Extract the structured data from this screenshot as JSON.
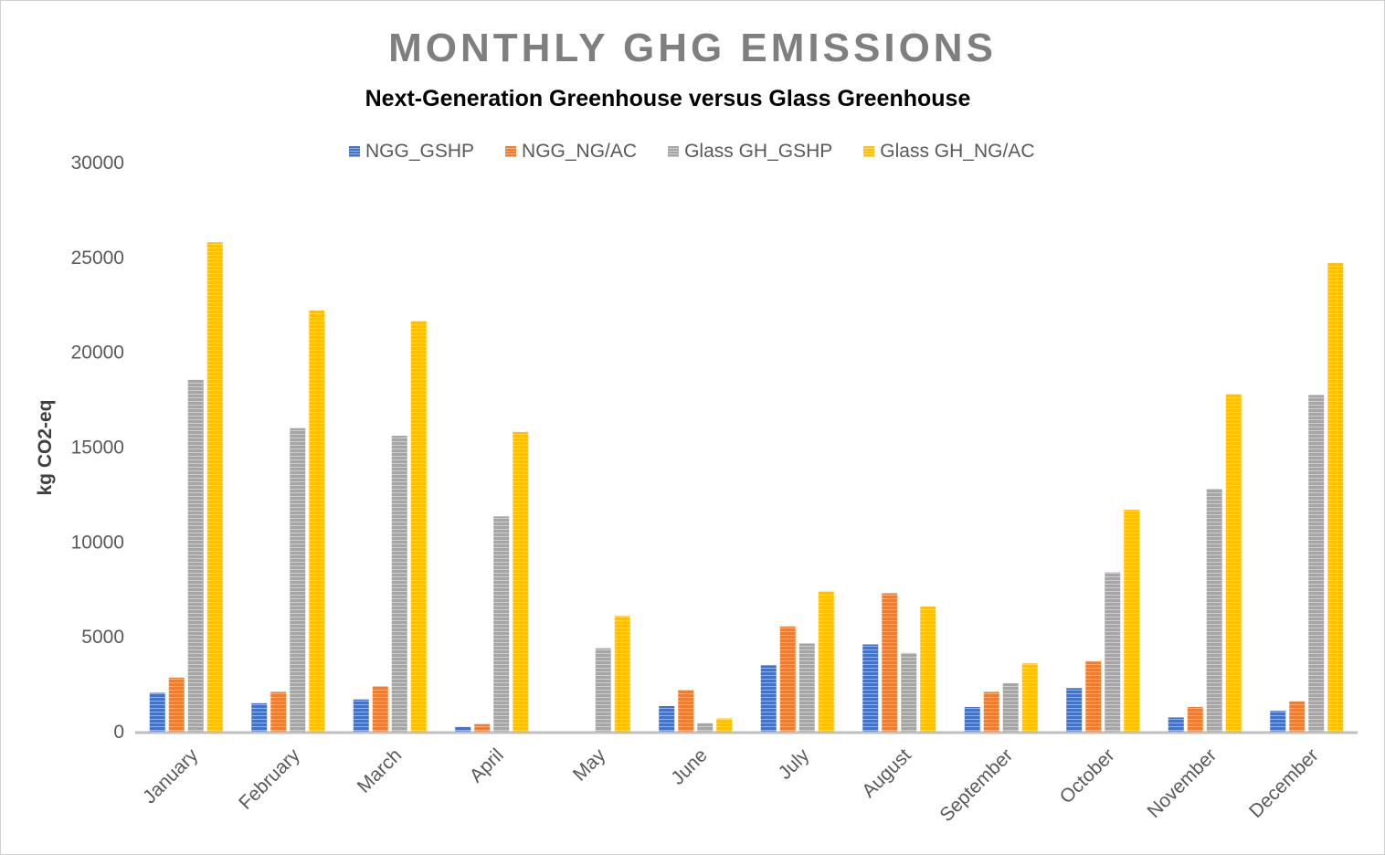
{
  "chart_data": {
    "type": "bar",
    "title": "MONTHLY GHG EMISSIONS",
    "subtitle": "Next-Generation Greenhouse versus Glass Greenhouse",
    "xlabel": "",
    "ylabel": "kg CO2-eq",
    "ylim": [
      0,
      30000
    ],
    "yticks": [
      0,
      5000,
      10000,
      15000,
      20000,
      25000,
      30000
    ],
    "grid": false,
    "legend_position": "top",
    "categories": [
      "January",
      "February",
      "March",
      "April",
      "May",
      "June",
      "July",
      "August",
      "September",
      "October",
      "November",
      "December"
    ],
    "series": [
      {
        "name": "NGG_GSHP",
        "color": "#4472c4",
        "values": [
          2050,
          1500,
          1700,
          250,
          0,
          1350,
          3500,
          4600,
          1300,
          2300,
          750,
          1100
        ]
      },
      {
        "name": "NGG_NG/AC",
        "color": "#ed7d31",
        "values": [
          2850,
          2100,
          2400,
          400,
          0,
          2200,
          5550,
          7300,
          2100,
          3700,
          1300,
          1600
        ]
      },
      {
        "name": "Glass GH_GSHP",
        "color": "#a5a5a5",
        "values": [
          18550,
          16000,
          15600,
          11350,
          4400,
          450,
          4650,
          4150,
          2550,
          8400,
          12800,
          17750
        ]
      },
      {
        "name": "Glass GH_NG/AC",
        "color": "#ffc000",
        "values": [
          25800,
          22200,
          21650,
          15800,
          6100,
          700,
          7400,
          6600,
          3600,
          11700,
          17800,
          24700
        ]
      }
    ]
  }
}
